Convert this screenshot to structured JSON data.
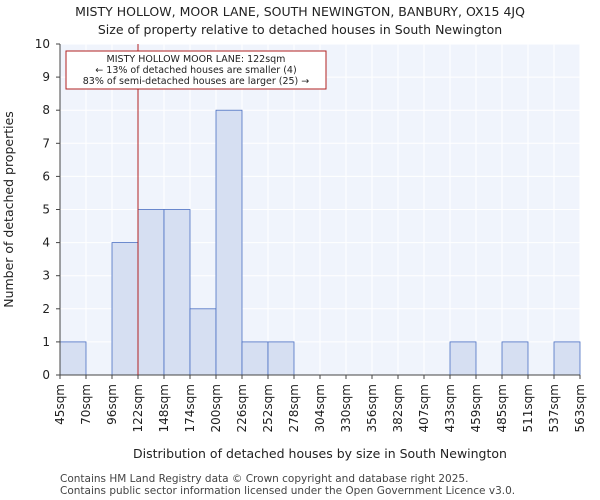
{
  "title_line1": "MISTY HOLLOW, MOOR LANE, SOUTH NEWINGTON, BANBURY, OX15 4JQ",
  "title_line2": "Size of property relative to detached houses in South Newington",
  "footer_line1": "Contains HM Land Registry data © Crown copyright and database right 2025.",
  "footer_line2": "Contains public sector information licensed under the Open Government Licence v3.0.",
  "chart_data": {
    "type": "bar",
    "title": "Size of property relative to detached houses in South Newington",
    "xlabel": "Distribution of detached houses by size in South Newington",
    "ylabel": "Number of detached properties",
    "bin_edges": [
      45,
      70,
      96,
      122,
      148,
      174,
      200,
      226,
      252,
      278,
      304,
      330,
      356,
      382,
      407,
      433,
      459,
      485,
      511,
      537,
      563
    ],
    "x_tick_labels": [
      "45sqm",
      "70sqm",
      "96sqm",
      "122sqm",
      "148sqm",
      "174sqm",
      "200sqm",
      "226sqm",
      "252sqm",
      "278sqm",
      "304sqm",
      "330sqm",
      "356sqm",
      "382sqm",
      "407sqm",
      "433sqm",
      "459sqm",
      "485sqm",
      "511sqm",
      "537sqm",
      "563sqm"
    ],
    "values": [
      1,
      0,
      4,
      5,
      5,
      2,
      8,
      1,
      1,
      0,
      0,
      0,
      0,
      0,
      0,
      1,
      0,
      1,
      0,
      1
    ],
    "ylim": [
      0,
      10
    ],
    "y_ticks": [
      0,
      1,
      2,
      3,
      4,
      5,
      6,
      7,
      8,
      9,
      10
    ],
    "marker_index": 3,
    "annotation": {
      "line1": "MISTY HOLLOW MOOR LANE: 122sqm",
      "line2": "← 13% of detached houses are smaller (4)",
      "line3": "83% of semi-detached houses are larger (25) →"
    },
    "colors": {
      "bar_fill": "#d6dff2",
      "bar_stroke": "#4a6fc2",
      "marker": "#b22222",
      "plot_bg": "#f0f4fc",
      "grid": "#ffffff"
    }
  }
}
